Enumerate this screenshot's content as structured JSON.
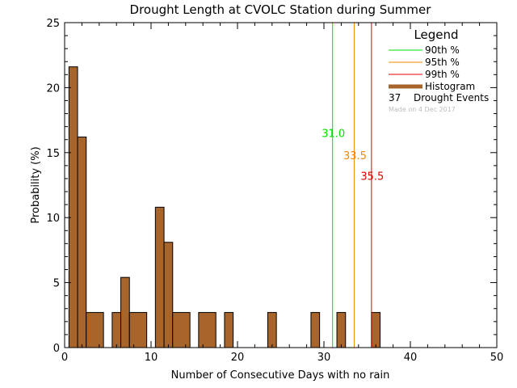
{
  "chart_data": {
    "type": "bar",
    "title": "Drought Length at CVOLC Station during Summer",
    "xlabel": "Number of Consecutive Days with no rain",
    "ylabel": "Probability (%)",
    "xlim": [
      0,
      50
    ],
    "ylim": [
      0,
      25
    ],
    "xticks": [
      0,
      10,
      20,
      30,
      40,
      50
    ],
    "yticks": [
      0,
      5,
      10,
      15,
      20,
      25
    ],
    "bar_color": "#a8652b",
    "bins": [
      {
        "x0": 0.5,
        "x1": 1.5,
        "value": 21.6
      },
      {
        "x0": 1.5,
        "x1": 2.5,
        "value": 16.2
      },
      {
        "x0": 2.5,
        "x1": 4.5,
        "value": 2.7
      },
      {
        "x0": 5.5,
        "x1": 6.5,
        "value": 2.7
      },
      {
        "x0": 6.5,
        "x1": 7.5,
        "value": 5.4
      },
      {
        "x0": 7.5,
        "x1": 9.5,
        "value": 2.7
      },
      {
        "x0": 10.5,
        "x1": 11.5,
        "value": 10.8
      },
      {
        "x0": 11.5,
        "x1": 12.5,
        "value": 8.1
      },
      {
        "x0": 12.5,
        "x1": 14.5,
        "value": 2.7
      },
      {
        "x0": 15.5,
        "x1": 17.5,
        "value": 2.7
      },
      {
        "x0": 18.5,
        "x1": 19.5,
        "value": 2.7
      },
      {
        "x0": 23.5,
        "x1": 24.5,
        "value": 2.7
      },
      {
        "x0": 28.5,
        "x1": 29.5,
        "value": 2.7
      },
      {
        "x0": 31.5,
        "x1": 32.5,
        "value": 2.7
      },
      {
        "x0": 35.5,
        "x1": 36.5,
        "value": 2.7
      }
    ],
    "percentiles": [
      {
        "name": "90th %",
        "x": 31.0,
        "label": "31.0",
        "color": "#00dd00",
        "label_y": 16.5
      },
      {
        "name": "95th %",
        "x": 33.5,
        "label": "33.5",
        "color": "#ee8800",
        "label_y": 14.8
      },
      {
        "name": "99th %",
        "x": 35.5,
        "label": "35.5",
        "color": "#dd0000",
        "label_y": 13.2
      }
    ],
    "legend": {
      "title": "Legend",
      "items": [
        {
          "label": "90th %",
          "color": "#00dd00",
          "kind": "line"
        },
        {
          "label": "95th %",
          "color": "#ee8800",
          "kind": "line"
        },
        {
          "label": "99th %",
          "color": "#dd0000",
          "kind": "line"
        },
        {
          "label": "Histogram",
          "color": "#a8652b",
          "kind": "thick"
        }
      ],
      "events_count": "37",
      "events_label": "Drought Events",
      "note": "Made on 4 Dec 2017"
    }
  }
}
